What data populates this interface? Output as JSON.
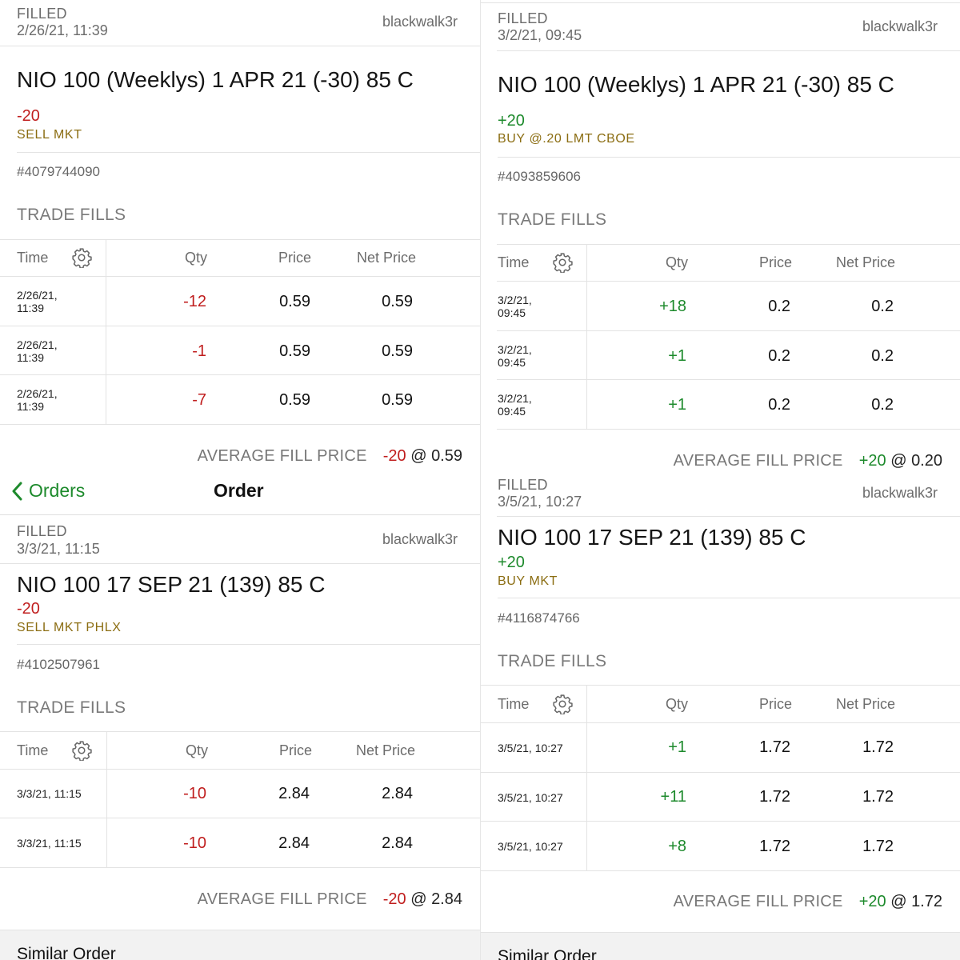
{
  "user": "blackwalk3r",
  "labels": {
    "trade_fills": "TRADE FILLS",
    "col_time": "Time",
    "col_qty": "Qty",
    "col_price": "Price",
    "col_net_price": "Net Price",
    "average_fill_price": "AVERAGE FILL PRICE",
    "similar_order": "Similar Order"
  },
  "nav": {
    "back_label": "Orders",
    "title": "Order"
  },
  "colors": {
    "sell": "#c01e1e",
    "buy": "#1d8a2c",
    "action": "#8b6d12",
    "accent": "#1d8a2c"
  },
  "orders": [
    {
      "status": "FILLED",
      "datetime": "2/26/21, 11:39",
      "title": "NIO 100 (Weeklys) 1 APR 21 (-30) 85 C",
      "qty": "-20",
      "action": "SELL MKT",
      "order_id": "#4079744090",
      "fills": [
        {
          "time_date": "2/26/21,",
          "time_clock": "11:39",
          "qty": "-12",
          "price": "0.59",
          "net": "0.59"
        },
        {
          "time_date": "2/26/21,",
          "time_clock": "11:39",
          "qty": "-1",
          "price": "0.59",
          "net": "0.59"
        },
        {
          "time_date": "2/26/21,",
          "time_clock": "11:39",
          "qty": "-7",
          "price": "0.59",
          "net": "0.59"
        }
      ],
      "avg_qty": "-20",
      "avg_price": "@ 0.59"
    },
    {
      "status": "FILLED",
      "datetime": "3/2/21, 09:45",
      "title": "NIO 100 (Weeklys) 1 APR 21 (-30) 85 C",
      "qty": "+20",
      "action": "BUY @.20 LMT CBOE",
      "order_id": "#4093859606",
      "fills": [
        {
          "time_date": "3/2/21,",
          "time_clock": "09:45",
          "qty": "+18",
          "price": "0.2",
          "net": "0.2"
        },
        {
          "time_date": "3/2/21,",
          "time_clock": "09:45",
          "qty": "+1",
          "price": "0.2",
          "net": "0.2"
        },
        {
          "time_date": "3/2/21,",
          "time_clock": "09:45",
          "qty": "+1",
          "price": "0.2",
          "net": "0.2"
        }
      ],
      "avg_qty": "+20",
      "avg_price": "@ 0.20"
    },
    {
      "status": "FILLED",
      "datetime": "3/3/21, 11:15",
      "title": "NIO 100 17 SEP 21 (139) 85 C",
      "qty": "-20",
      "action": "SELL MKT PHLX",
      "order_id": "#4102507961",
      "fills": [
        {
          "time": "3/3/21, 11:15",
          "qty": "-10",
          "price": "2.84",
          "net": "2.84"
        },
        {
          "time": "3/3/21, 11:15",
          "qty": "-10",
          "price": "2.84",
          "net": "2.84"
        }
      ],
      "avg_qty": "-20",
      "avg_price": "@ 2.84"
    },
    {
      "status": "FILLED",
      "datetime": "3/5/21, 10:27",
      "title": "NIO 100 17 SEP 21 (139) 85 C",
      "qty": "+20",
      "action": "BUY MKT",
      "order_id": "#4116874766",
      "fills": [
        {
          "time": "3/5/21, 10:27",
          "qty": "+1",
          "price": "1.72",
          "net": "1.72"
        },
        {
          "time": "3/5/21, 10:27",
          "qty": "+11",
          "price": "1.72",
          "net": "1.72"
        },
        {
          "time": "3/5/21, 10:27",
          "qty": "+8",
          "price": "1.72",
          "net": "1.72"
        }
      ],
      "avg_qty": "+20",
      "avg_price": "@ 1.72"
    }
  ]
}
